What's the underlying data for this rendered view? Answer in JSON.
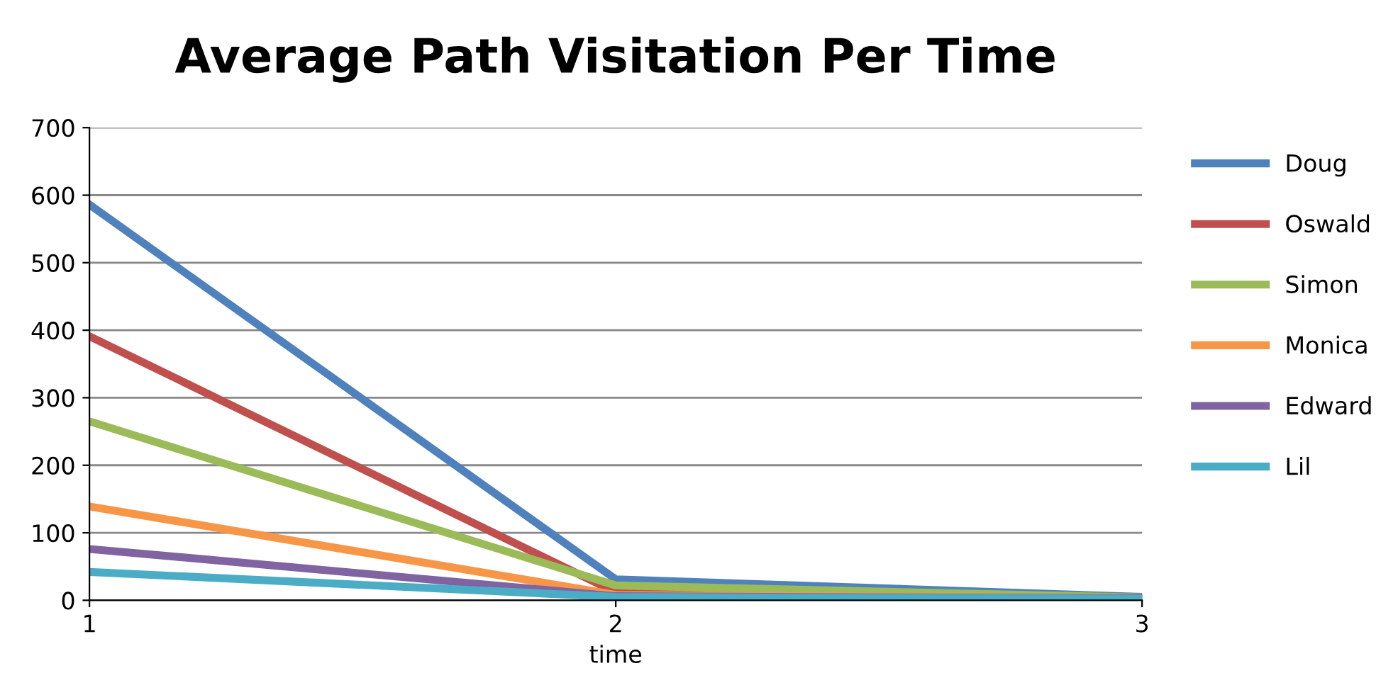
{
  "chart_data": {
    "type": "line",
    "title": "Average Path Visitation Per Time",
    "xlabel": "time",
    "x": [
      1,
      2,
      3
    ],
    "xlim": [
      1,
      3
    ],
    "xticks": [
      1,
      2,
      3
    ],
    "ylim": [
      0,
      700
    ],
    "yticks": [
      0,
      100,
      200,
      300,
      400,
      500,
      600,
      700
    ],
    "grid": "y",
    "legend": "right",
    "marker": "none",
    "line_style": "solid",
    "series": [
      {
        "name": "Doug",
        "color": "#4f81bd",
        "values": [
          586,
          31,
          5
        ]
      },
      {
        "name": "Oswald",
        "color": "#c0504d",
        "values": [
          391,
          12,
          4
        ]
      },
      {
        "name": "Simon",
        "color": "#9bbb59",
        "values": [
          265,
          22,
          4
        ]
      },
      {
        "name": "Monica",
        "color": "#f79646",
        "values": [
          139,
          8,
          3
        ]
      },
      {
        "name": "Edward",
        "color": "#8064a2",
        "values": [
          76,
          6,
          3
        ]
      },
      {
        "name": "Lil",
        "color": "#4bacc6",
        "values": [
          42,
          5,
          2
        ]
      }
    ]
  }
}
